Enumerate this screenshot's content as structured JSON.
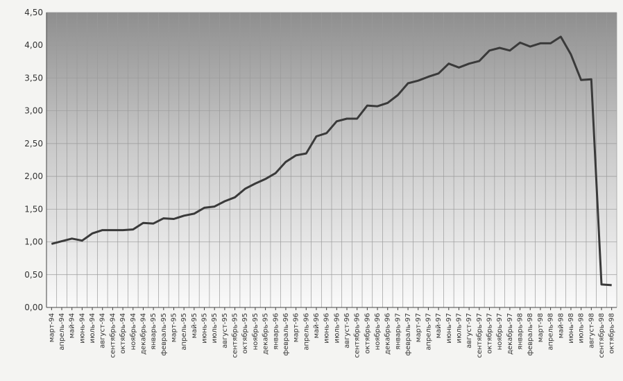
{
  "chart_data": {
    "type": "line",
    "title": "",
    "xlabel": "",
    "ylabel": "",
    "ylim": [
      0,
      4.5
    ],
    "yticks": [
      "0,00",
      "0,50",
      "1,00",
      "1,50",
      "2,00",
      "2,50",
      "3,00",
      "3,50",
      "4,00",
      "4,50"
    ],
    "grid": true,
    "categories": [
      "март-94",
      "апрель-94",
      "май-94",
      "июнь-94",
      "июль-94",
      "август-94",
      "сентябрь-94",
      "октябрь-94",
      "ноябрь-94",
      "декабрь-94",
      "январь-95",
      "февраль-95",
      "март-95",
      "апрель-95",
      "май-95",
      "июнь-95",
      "июль-95",
      "август-95",
      "сентябрь-95",
      "октябрь-95",
      "ноябрь-95",
      "декабрь-95",
      "январь-96",
      "февраль-96",
      "март-96",
      "апрель-96",
      "май-96",
      "июнь-96",
      "июль-96",
      "август-96",
      "сентябрь-96",
      "октябрь-96",
      "ноябрь-96",
      "декабрь-96",
      "январь-97",
      "февраль-97",
      "март-97",
      "апрель-97",
      "май-97",
      "июнь-97",
      "июль-97",
      "август-97",
      "сентябрь-97",
      "октябрь-97",
      "ноябрь-97",
      "декабрь-97",
      "январь-98",
      "февраль-98",
      "март-98",
      "апрель-98",
      "май-98",
      "июнь-98",
      "июль-98",
      "август-98",
      "сентябрь-98",
      "октябрь-98"
    ],
    "series": [
      {
        "values": [
          0.97,
          1.01,
          1.05,
          1.02,
          1.13,
          1.18,
          1.18,
          1.18,
          1.19,
          1.29,
          1.28,
          1.36,
          1.35,
          1.4,
          1.43,
          1.52,
          1.54,
          1.62,
          1.68,
          1.81,
          1.89,
          1.96,
          2.05,
          2.22,
          2.32,
          2.35,
          2.61,
          2.66,
          2.84,
          2.88,
          2.88,
          3.08,
          3.07,
          3.12,
          3.24,
          3.42,
          3.46,
          3.52,
          3.57,
          3.72,
          3.66,
          3.72,
          3.76,
          3.92,
          3.96,
          3.92,
          4.04,
          3.98,
          4.03,
          4.03,
          4.13,
          3.86,
          3.47,
          3.48,
          0.35,
          0.34
        ]
      }
    ]
  }
}
